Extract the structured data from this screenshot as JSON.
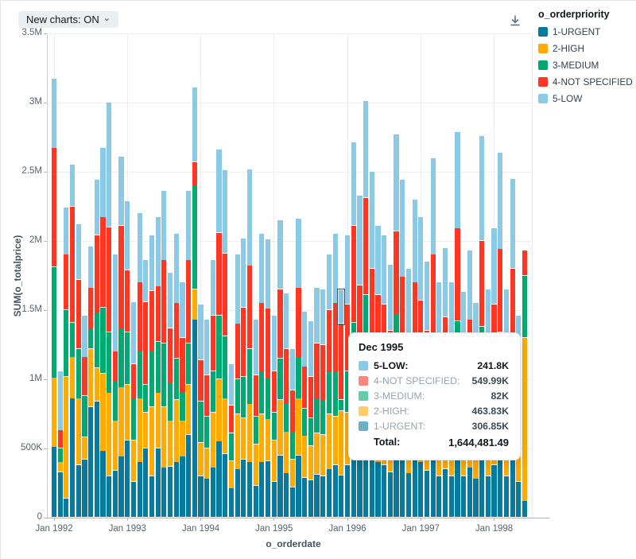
{
  "header": {
    "new_charts_toggle_label": "New charts: ON",
    "chevron_icon": "⌄"
  },
  "legend": {
    "title": "o_orderpriority",
    "items": [
      {
        "label": "1-URGENT",
        "color": "#077A9D"
      },
      {
        "label": "2-HIGH",
        "color": "#FFAB00"
      },
      {
        "label": "3-MEDIUM",
        "color": "#00A972"
      },
      {
        "label": "4-NOT SPECIFIED",
        "color": "#FF3621"
      },
      {
        "label": "5-LOW",
        "color": "#8BCAE7"
      }
    ]
  },
  "axes": {
    "y_title": "SUM(o_totalprice)",
    "x_title": "o_orderdate",
    "y_ticks": [
      {
        "label": "0",
        "value": 0
      },
      {
        "label": "500K",
        "value": 0.5
      },
      {
        "label": "1M",
        "value": 1
      },
      {
        "label": "1.5M",
        "value": 1.5
      },
      {
        "label": "2M",
        "value": 2
      },
      {
        "label": "2.5M",
        "value": 2.5
      },
      {
        "label": "3M",
        "value": 3
      },
      {
        "label": "3.5M",
        "value": 3.5
      }
    ],
    "x_ticks": [
      {
        "label": "Jan 1992",
        "month_index": 0
      },
      {
        "label": "Jan 1993",
        "month_index": 12
      },
      {
        "label": "Jan 1994",
        "month_index": 24
      },
      {
        "label": "Jan 1995",
        "month_index": 36
      },
      {
        "label": "Jan 1996",
        "month_index": 48
      },
      {
        "label": "Jan 1997",
        "month_index": 60
      },
      {
        "label": "Jan 1998",
        "month_index": 72
      }
    ]
  },
  "tooltip": {
    "title": "Dec 1995",
    "rows": [
      {
        "label": "5-LOW:",
        "value": "241.8K",
        "color": "#8BCAE7",
        "highlighted": true
      },
      {
        "label": "4-NOT SPECIFIED:",
        "value": "549.99K",
        "color": "#FF3621",
        "highlighted": false
      },
      {
        "label": "3-MEDIUM:",
        "value": "82K",
        "color": "#00A972",
        "highlighted": false
      },
      {
        "label": "2-HIGH:",
        "value": "463.83K",
        "color": "#FFAB00",
        "highlighted": false
      },
      {
        "label": "1-URGENT:",
        "value": "306.85K",
        "color": "#077A9D",
        "highlighted": false
      }
    ],
    "total_label": "Total:",
    "total_value": "1,644,481.49"
  },
  "chart_data": {
    "type": "bar",
    "stacked": true,
    "title": "",
    "xlabel": "o_orderdate",
    "ylabel": "SUM(o_totalprice)",
    "unit": "millions",
    "ylim": [
      0,
      3.5
    ],
    "grid": true,
    "legend_position": "top-right",
    "highlight": {
      "category": "Dec 1995",
      "index": 47,
      "series": "5-LOW"
    },
    "categories": [
      "Jan 1992",
      "Feb 1992",
      "Mar 1992",
      "Apr 1992",
      "May 1992",
      "Jun 1992",
      "Jul 1992",
      "Aug 1992",
      "Sep 1992",
      "Oct 1992",
      "Nov 1992",
      "Dec 1992",
      "Jan 1993",
      "Feb 1993",
      "Mar 1993",
      "Apr 1993",
      "May 1993",
      "Jun 1993",
      "Jul 1993",
      "Aug 1993",
      "Sep 1993",
      "Oct 1993",
      "Nov 1993",
      "Dec 1993",
      "Jan 1994",
      "Feb 1994",
      "Mar 1994",
      "Apr 1994",
      "May 1994",
      "Jun 1994",
      "Jul 1994",
      "Aug 1994",
      "Sep 1994",
      "Oct 1994",
      "Nov 1994",
      "Dec 1994",
      "Jan 1995",
      "Feb 1995",
      "Mar 1995",
      "Apr 1995",
      "May 1995",
      "Jun 1995",
      "Jul 1995",
      "Aug 1995",
      "Sep 1995",
      "Oct 1995",
      "Nov 1995",
      "Dec 1995",
      "Jan 1996",
      "Feb 1996",
      "Mar 1996",
      "Apr 1996",
      "May 1996",
      "Jun 1996",
      "Jul 1996",
      "Aug 1996",
      "Sep 1996",
      "Oct 1996",
      "Nov 1996",
      "Dec 1996",
      "Jan 1997",
      "Feb 1997",
      "Mar 1997",
      "Apr 1997",
      "May 1997",
      "Jun 1997",
      "Jul 1997",
      "Aug 1997",
      "Sep 1997",
      "Oct 1997",
      "Nov 1997",
      "Dec 1997",
      "Jan 1998",
      "Feb 1998",
      "Mar 1998",
      "Apr 1998",
      "May 1998",
      "Jun 1998"
    ],
    "series": [
      {
        "name": "1-URGENT",
        "color": "#077A9D",
        "values": [
          0.51,
          0.33,
          0.14,
          0.86,
          0.38,
          0.42,
          0.8,
          0.84,
          0.48,
          0.3,
          0.34,
          0.44,
          0.56,
          0.26,
          0.4,
          0.5,
          0.3,
          0.5,
          0.36,
          0.37,
          0.4,
          0.44,
          0.6,
          1.43,
          0.3,
          0.28,
          0.36,
          0.55,
          0.46,
          0.21,
          0.35,
          0.42,
          0.4,
          0.23,
          0.4,
          0.41,
          0.26,
          0.45,
          0.32,
          0.22,
          0.45,
          0.29,
          0.27,
          0.31,
          0.3,
          0.35,
          0.38,
          0.30685,
          0.38,
          0.5,
          0.42,
          0.55,
          0.46,
          0.4,
          0.38,
          0.33,
          0.55,
          0.45,
          0.32,
          0.42,
          0.4,
          0.34,
          0.48,
          0.3,
          0.35,
          0.3,
          0.52,
          0.3,
          0.36,
          0.28,
          0.5,
          0.3,
          0.38,
          0.48,
          0.3,
          0.45,
          0.26,
          0.12
        ]
      },
      {
        "name": "2-HIGH",
        "color": "#FFAB00",
        "values": [
          0.5,
          0.07,
          0.88,
          0.3,
          0.48,
          0.16,
          0.42,
          0.24,
          0.56,
          0.6,
          0.36,
          0.5,
          0.4,
          0.3,
          0.46,
          0.26,
          0.5,
          0.4,
          0.44,
          0.33,
          0.45,
          0.26,
          0.36,
          0.22,
          0.24,
          0.22,
          0.4,
          0.45,
          0.4,
          0.2,
          0.4,
          0.3,
          0.42,
          0.3,
          0.35,
          0.3,
          0.3,
          0.4,
          0.3,
          0.2,
          0.41,
          0.3,
          0.25,
          0.3,
          0.3,
          0.4,
          0.35,
          0.46383,
          0.38,
          0.5,
          0.42,
          0.56,
          0.44,
          0.38,
          0.38,
          0.32,
          0.52,
          0.4,
          0.3,
          0.4,
          0.38,
          0.31,
          0.46,
          0.3,
          0.35,
          0.3,
          0.5,
          0.28,
          0.33,
          0.35,
          0.48,
          0.28,
          0.36,
          0.46,
          0.28,
          0.42,
          0.25,
          1.18
        ]
      },
      {
        "name": "3-MEDIUM",
        "color": "#00A972",
        "values": [
          0.8,
          0.1,
          0.48,
          0.25,
          0.36,
          0.3,
          0.14,
          0.4,
          0.48,
          0.44,
          0.28,
          0.42,
          0.38,
          0.3,
          0.34,
          0.2,
          0.4,
          0.37,
          0.46,
          0.27,
          0.3,
          0.2,
          0.3,
          0.75,
          0.3,
          0.23,
          0.3,
          0.46,
          0.45,
          0.2,
          0.25,
          0.3,
          0.4,
          0.2,
          0.3,
          0.3,
          0.2,
          0.3,
          0.2,
          0.2,
          0.3,
          0.2,
          0.2,
          0.25,
          0.25,
          0.3,
          0.32,
          0.082,
          0.3,
          0.41,
          0.36,
          0.5,
          0.38,
          0.33,
          0.3,
          0.28,
          0.4,
          0.39,
          0.28,
          0.38,
          0.31,
          0.28,
          0.38,
          0.25,
          0.3,
          0.25,
          0.4,
          0.25,
          0.3,
          0.22,
          0.4,
          0.25,
          0.3,
          0.4,
          0.25,
          0.38,
          0.2,
          0.45
        ]
      },
      {
        "name": "4-NOT SPECIFIED",
        "color": "#FF3621",
        "values": [
          0.86,
          0.13,
          0.4,
          0.84,
          0.5,
          0.28,
          0.3,
          0.56,
          0.65,
          0.76,
          0.22,
          0.75,
          0.45,
          0.25,
          0.5,
          0.6,
          0.44,
          0.4,
          0.6,
          0.4,
          0.4,
          0.4,
          0.6,
          0.17,
          0.3,
          0.3,
          0.4,
          0.6,
          0.6,
          0.2,
          0.4,
          0.5,
          0.6,
          0.3,
          0.5,
          0.5,
          0.3,
          0.5,
          0.4,
          0.3,
          0.5,
          0.3,
          0.3,
          0.4,
          0.4,
          0.45,
          0.5,
          0.54999,
          0.48,
          0.7,
          0.48,
          0.7,
          0.52,
          0.5,
          0.48,
          0.42,
          0.6,
          0.5,
          0.4,
          0.5,
          0.48,
          0.42,
          0.58,
          0.4,
          0.45,
          0.4,
          0.67,
          0.4,
          0.44,
          0.35,
          0.62,
          0.4,
          0.5,
          0.6,
          0.4,
          0.55,
          0.35,
          0.18
        ]
      },
      {
        "name": "5-LOW",
        "color": "#8BCAE7",
        "values": [
          0.5,
          0.43,
          0.34,
          0.3,
          0.4,
          0.3,
          0.3,
          0.4,
          0.5,
          0.9,
          0.7,
          0.5,
          0.5,
          0.45,
          0.5,
          0.3,
          0.4,
          0.5,
          0.5,
          0.4,
          0.5,
          0.4,
          0.5,
          0.54,
          0.4,
          0.4,
          0.4,
          0.6,
          0.6,
          0.3,
          0.5,
          0.5,
          0.7,
          0.4,
          0.5,
          0.5,
          0.4,
          0.5,
          0.4,
          0.3,
          0.5,
          0.4,
          0.4,
          0.4,
          0.4,
          0.4,
          0.5,
          0.2418,
          0.5,
          0.6,
          0.65,
          0.7,
          0.7,
          0.5,
          0.5,
          0.48,
          0.7,
          0.7,
          0.5,
          0.6,
          0.6,
          0.5,
          0.7,
          0.45,
          0.5,
          0.45,
          0.7,
          0.4,
          0.5,
          0.35,
          0.76,
          0.42,
          0.55,
          0.7,
          0.42,
          0.65,
          0.4,
          0
        ]
      }
    ]
  }
}
